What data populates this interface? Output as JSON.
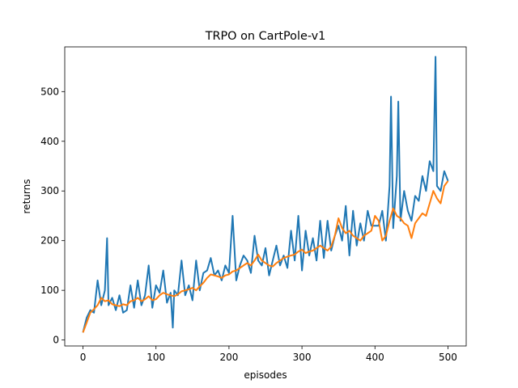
{
  "chart_data": {
    "type": "line",
    "title": "TRPO on CartPole-v1",
    "xlabel": "episodes",
    "ylabel": "returns",
    "xlim": [
      -25,
      525
    ],
    "ylim": [
      -12,
      590
    ],
    "xticks": [
      0,
      100,
      200,
      300,
      400,
      500
    ],
    "yticks": [
      0,
      100,
      200,
      300,
      400,
      500
    ],
    "grid": false,
    "legend": "none",
    "series": [
      {
        "color": "#1f77b4",
        "x": [
          0,
          5,
          10,
          15,
          20,
          25,
          30,
          33,
          35,
          40,
          45,
          50,
          55,
          60,
          65,
          70,
          75,
          80,
          85,
          90,
          95,
          100,
          105,
          110,
          115,
          120,
          123,
          125,
          130,
          135,
          140,
          145,
          150,
          155,
          160,
          165,
          170,
          175,
          180,
          185,
          190,
          195,
          200,
          205,
          210,
          215,
          220,
          225,
          230,
          235,
          240,
          245,
          250,
          255,
          260,
          265,
          270,
          275,
          280,
          285,
          290,
          295,
          300,
          305,
          310,
          315,
          320,
          325,
          330,
          335,
          340,
          345,
          350,
          355,
          360,
          365,
          370,
          375,
          380,
          385,
          390,
          395,
          400,
          405,
          410,
          415,
          420,
          422,
          425,
          430,
          432,
          435,
          440,
          445,
          450,
          455,
          460,
          465,
          470,
          475,
          480,
          483,
          485,
          490,
          495,
          500
        ],
        "y": [
          15,
          45,
          60,
          55,
          120,
          70,
          100,
          205,
          70,
          85,
          60,
          90,
          55,
          60,
          110,
          65,
          120,
          70,
          90,
          150,
          65,
          110,
          95,
          140,
          75,
          95,
          25,
          100,
          90,
          160,
          90,
          110,
          80,
          160,
          100,
          135,
          140,
          165,
          130,
          140,
          120,
          150,
          135,
          250,
          120,
          150,
          170,
          160,
          135,
          210,
          160,
          150,
          185,
          130,
          160,
          190,
          150,
          170,
          145,
          220,
          160,
          250,
          140,
          220,
          170,
          205,
          160,
          240,
          165,
          240,
          180,
          210,
          230,
          200,
          270,
          170,
          260,
          190,
          235,
          200,
          260,
          230,
          230,
          230,
          260,
          200,
          310,
          490,
          225,
          330,
          480,
          240,
          300,
          260,
          240,
          290,
          280,
          330,
          300,
          360,
          340,
          570,
          310,
          300,
          340,
          320
        ]
      },
      {
        "color": "#ff7f0e",
        "x": [
          0,
          5,
          10,
          15,
          20,
          25,
          30,
          35,
          40,
          45,
          50,
          55,
          60,
          65,
          70,
          75,
          80,
          85,
          90,
          95,
          100,
          105,
          110,
          115,
          120,
          125,
          130,
          135,
          140,
          145,
          150,
          155,
          160,
          165,
          170,
          175,
          180,
          185,
          190,
          195,
          200,
          205,
          210,
          215,
          220,
          225,
          230,
          235,
          240,
          245,
          250,
          255,
          260,
          265,
          270,
          275,
          280,
          285,
          290,
          295,
          300,
          305,
          310,
          315,
          320,
          325,
          330,
          335,
          340,
          345,
          350,
          355,
          360,
          365,
          370,
          375,
          380,
          385,
          390,
          395,
          400,
          405,
          410,
          415,
          420,
          425,
          430,
          435,
          440,
          445,
          450,
          455,
          460,
          465,
          470,
          475,
          480,
          485,
          490,
          495,
          500
        ],
        "y": [
          15,
          35,
          55,
          62,
          70,
          85,
          78,
          80,
          72,
          70,
          68,
          72,
          70,
          78,
          80,
          85,
          78,
          82,
          88,
          80,
          82,
          90,
          95,
          92,
          90,
          88,
          92,
          98,
          100,
          102,
          105,
          100,
          108,
          115,
          125,
          132,
          130,
          128,
          125,
          130,
          132,
          138,
          140,
          145,
          150,
          155,
          150,
          160,
          172,
          160,
          155,
          150,
          148,
          155,
          160,
          165,
          168,
          170,
          172,
          178,
          182,
          175,
          178,
          180,
          185,
          190,
          185,
          180,
          188,
          210,
          245,
          225,
          215,
          220,
          210,
          205,
          200,
          210,
          215,
          220,
          250,
          240,
          200,
          210,
          240,
          265,
          250,
          245,
          235,
          230,
          205,
          235,
          245,
          255,
          250,
          275,
          300,
          285,
          275,
          310,
          320
        ]
      }
    ]
  }
}
